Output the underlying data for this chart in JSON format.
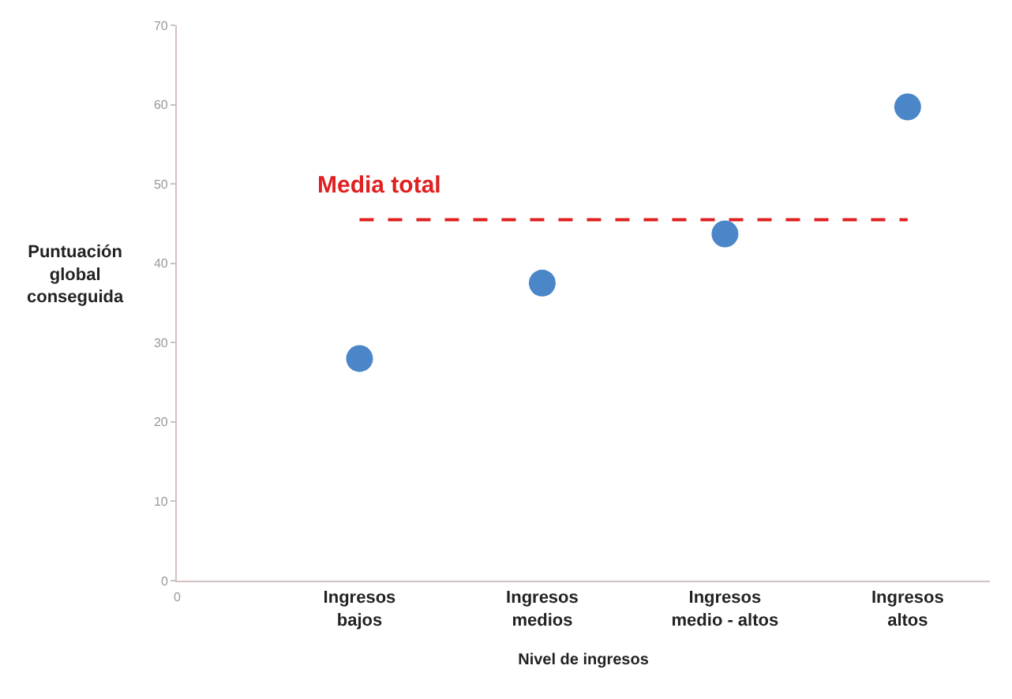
{
  "chart_data": {
    "type": "scatter",
    "xlabel": "Nivel de ingresos",
    "ylabel": "Puntuación\nglobal\nconseguida",
    "categories": [
      "Ingresos\nbajos",
      "Ingresos\nmedios",
      "Ingresos\nmedio - altos",
      "Ingresos\naltos"
    ],
    "series": [
      {
        "color": "#4a86c8",
        "values": [
          28,
          37.5,
          43.7,
          59.7
        ]
      }
    ],
    "ylim": [
      0,
      70
    ],
    "yticks": [
      0,
      10,
      20,
      30,
      40,
      50,
      60,
      70
    ],
    "annotations": [
      "0"
    ],
    "ref_lines": [
      {
        "axis": "y",
        "value": 45.5,
        "label": "Media total",
        "color": "#e02020",
        "line_style": "dashed"
      }
    ],
    "marker": "circle"
  }
}
